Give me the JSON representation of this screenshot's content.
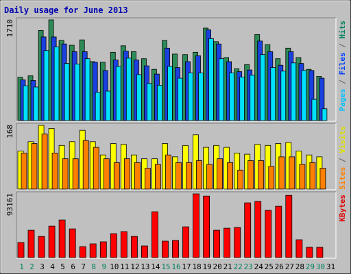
{
  "chart_data": {
    "title": "Daily usage for June 2013",
    "type": "bar",
    "days": [
      "1",
      "2",
      "3",
      "4",
      "5",
      "6",
      "7",
      "8",
      "9",
      "10",
      "11",
      "12",
      "13",
      "14",
      "15",
      "16",
      "17",
      "18",
      "19",
      "20",
      "21",
      "22",
      "23",
      "24",
      "25",
      "26",
      "27",
      "28",
      "29",
      "30",
      "31"
    ],
    "weekend_days": [
      "1",
      "2",
      "8",
      "9",
      "15",
      "16",
      "22",
      "23",
      "29",
      "30"
    ],
    "panels": [
      {
        "id": "hits",
        "ymax_label": "1710",
        "ymax": 1710,
        "right_labels": [
          {
            "text": "Pages",
            "color": "#00c0ff"
          },
          {
            "text": " / ",
            "color": "#606060"
          },
          {
            "text": "Files",
            "color": "#0040ff"
          },
          {
            "text": " / ",
            "color": "#606060"
          },
          {
            "text": "Hits",
            "color": "#00805f"
          }
        ],
        "series": [
          {
            "name": "Hits",
            "color": "#2e8b57",
            "values": [
              735,
              760,
              1530,
              1710,
              1360,
              1280,
              1370,
              1000,
              990,
              1160,
              1270,
              1170,
              1050,
              870,
              1360,
              1130,
              1120,
              1160,
              1570,
              1340,
              1070,
              880,
              950,
              1460,
              1290,
              1050,
              1230,
              1070,
              870,
              750,
              0
            ]
          },
          {
            "name": "Files",
            "color": "#1a40e0",
            "values": [
              690,
              680,
              1420,
              1420,
              1300,
              1170,
              1170,
              990,
              850,
              1030,
              1180,
              1030,
              930,
              790,
              1230,
              900,
              1000,
              1100,
              1540,
              1300,
              1000,
              830,
              860,
              1350,
              1170,
              940,
              1170,
              970,
              850,
              720,
              0
            ]
          },
          {
            "name": "Pages",
            "color": "#00e0ff",
            "values": [
              590,
              570,
              1190,
              1250,
              970,
              960,
              1050,
              480,
              500,
              920,
              1060,
              780,
              630,
              600,
              920,
              720,
              810,
              810,
              1390,
              1050,
              810,
              740,
              770,
              1120,
              900,
              840,
              980,
              850,
              360,
              200,
              0
            ]
          }
        ]
      },
      {
        "id": "visits",
        "ymax_label": "168",
        "ymax": 168,
        "right_labels": [
          {
            "text": "Sites",
            "color": "#ff8000"
          },
          {
            "text": " / ",
            "color": "#606060"
          },
          {
            "text": "Visits",
            "color": "#e0e000"
          }
        ],
        "series": [
          {
            "name": "Visits",
            "color": "#ffff00",
            "values": [
              100,
              125,
              168,
              160,
              115,
              125,
              155,
              125,
              90,
              120,
              118,
              90,
              80,
              80,
              120,
              85,
              115,
              143,
              110,
              115,
              110,
              95,
              92,
              118,
              115,
              120,
              123,
              100,
              90,
              85,
              0
            ]
          },
          {
            "name": "Sites",
            "color": "#ff8000",
            "values": [
              95,
              120,
              145,
              95,
              80,
              80,
              128,
              110,
              80,
              70,
              80,
              70,
              55,
              65,
              90,
              70,
              70,
              75,
              65,
              80,
              70,
              50,
              75,
              75,
              60,
              85,
              85,
              65,
              70,
              55,
              0
            ]
          }
        ]
      },
      {
        "id": "kbytes",
        "ymax_label": "93161",
        "ymax": 93161,
        "right_labels": [
          {
            "text": "KBytes",
            "color": "#e00000"
          }
        ],
        "series": [
          {
            "name": "KBytes",
            "color": "#ff0000",
            "values": [
              22000,
              40000,
              31000,
              46000,
              55000,
              42000,
              16000,
              20000,
              23000,
              35000,
              38000,
              31000,
              17000,
              67000,
              24000,
              25000,
              45000,
              93161,
              90000,
              40000,
              43000,
              44000,
              80000,
              82000,
              69000,
              75000,
              91000,
              26000,
              15000,
              15000,
              0
            ]
          }
        ]
      }
    ]
  }
}
